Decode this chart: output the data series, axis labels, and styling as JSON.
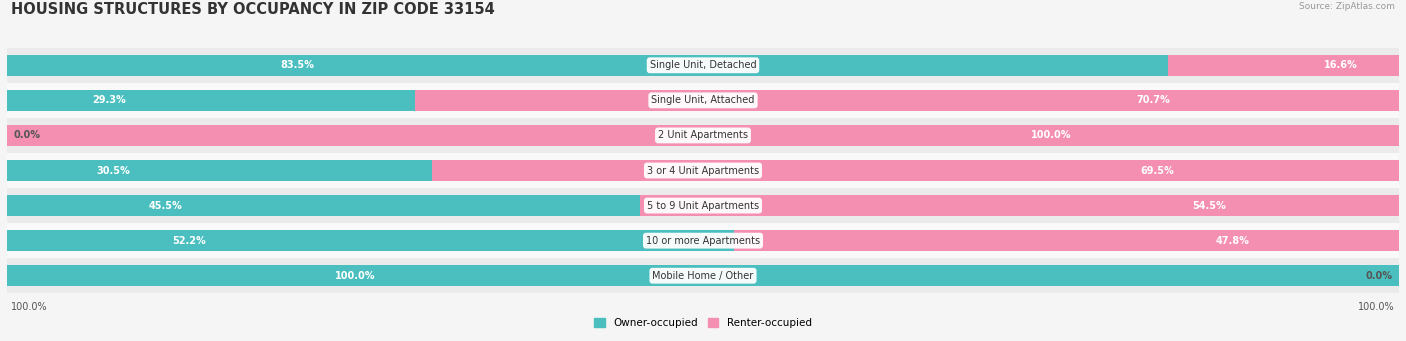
{
  "title": "HOUSING STRUCTURES BY OCCUPANCY IN ZIP CODE 33154",
  "source": "Source: ZipAtlas.com",
  "categories": [
    "Single Unit, Detached",
    "Single Unit, Attached",
    "2 Unit Apartments",
    "3 or 4 Unit Apartments",
    "5 to 9 Unit Apartments",
    "10 or more Apartments",
    "Mobile Home / Other"
  ],
  "owner_pct": [
    83.5,
    29.3,
    0.0,
    30.5,
    45.5,
    52.2,
    100.0
  ],
  "renter_pct": [
    16.6,
    70.7,
    100.0,
    69.5,
    54.5,
    47.8,
    0.0
  ],
  "owner_color": "#4BBFBF",
  "renter_color": "#F48FB1",
  "background_color": "#f5f5f5",
  "row_color_even": "#ebebeb",
  "row_color_odd": "#f9f9f9",
  "title_fontsize": 10.5,
  "bar_height": 0.6,
  "figsize": [
    14.06,
    3.41
  ]
}
